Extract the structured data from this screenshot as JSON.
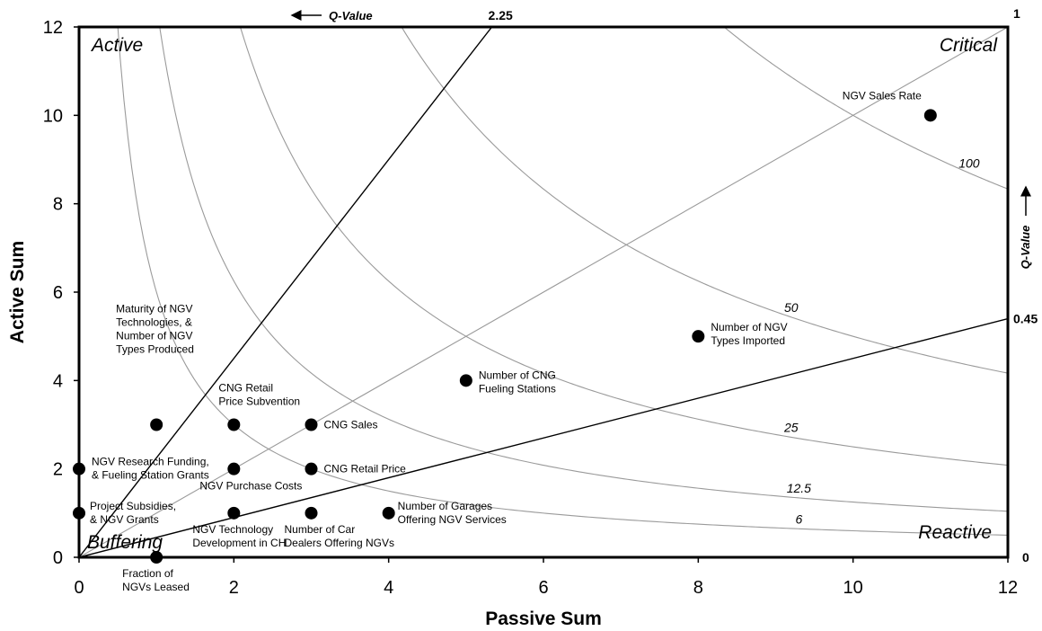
{
  "chart_data": {
    "type": "scatter",
    "xlabel": "Passive Sum",
    "ylabel": "Active Sum",
    "xlim": [
      0,
      12
    ],
    "ylim": [
      0,
      12
    ],
    "xticks": [
      "0",
      "2",
      "4",
      "6",
      "8",
      "10",
      "12"
    ],
    "yticks": [
      "0",
      "2",
      "4",
      "6",
      "8",
      "10",
      "12"
    ],
    "grid": false,
    "quadrant_labels": {
      "top_left": "Active",
      "top_right": "Critical",
      "bottom_left": "Buffering",
      "bottom_right": "Reactive"
    },
    "q_value_top_label": "Q-Value",
    "q_value_right_label": "Q-Value",
    "q_lines": [
      {
        "label": "2.25",
        "slope": 2.25
      },
      {
        "label": "1",
        "slope": 1
      },
      {
        "label": "0.45",
        "slope": 0.45
      },
      {
        "label": "0",
        "slope": 0
      }
    ],
    "p_curves": [
      {
        "label": "100",
        "product": 100
      },
      {
        "label": "50",
        "product": 50
      },
      {
        "label": "25",
        "product": 25
      },
      {
        "label": "12.5",
        "product": 12.5
      },
      {
        "label": "6",
        "product": 6
      }
    ],
    "points": [
      {
        "x": 11,
        "y": 10,
        "label": [
          "NGV Sales Rate"
        ]
      },
      {
        "x": 8,
        "y": 5,
        "label": [
          "Number of NGV",
          "Types Imported"
        ]
      },
      {
        "x": 5,
        "y": 4,
        "label": [
          "Number of CNG",
          "Fueling Stations"
        ]
      },
      {
        "x": 1,
        "y": 3,
        "label": [
          "Maturity of NGV",
          "Technologies, &",
          "Number of NGV",
          "Types Produced"
        ]
      },
      {
        "x": 2,
        "y": 3,
        "label": [
          "CNG Retail",
          "Price Subvention"
        ]
      },
      {
        "x": 3,
        "y": 3,
        "label": [
          "CNG Sales"
        ]
      },
      {
        "x": 0,
        "y": 2,
        "label": [
          "NGV Research Funding,",
          "& Fueling Station Grants"
        ]
      },
      {
        "x": 2,
        "y": 2,
        "label": [
          "NGV Purchase Costs"
        ]
      },
      {
        "x": 3,
        "y": 2,
        "label": [
          "CNG Retail Price"
        ]
      },
      {
        "x": 0,
        "y": 1,
        "label": [
          "Project Subsidies,",
          "& NGV Grants"
        ]
      },
      {
        "x": 2,
        "y": 1,
        "label": [
          "NGV Technology",
          "Development in CH"
        ]
      },
      {
        "x": 3,
        "y": 1,
        "label": [
          "Number of Car",
          "Dealers Offering NGVs"
        ]
      },
      {
        "x": 4,
        "y": 1,
        "label": [
          "Number of Garages",
          "Offering NGV Services"
        ]
      },
      {
        "x": 1,
        "y": 0,
        "label": [
          "Fraction of",
          "NGVs Leased"
        ]
      }
    ]
  }
}
